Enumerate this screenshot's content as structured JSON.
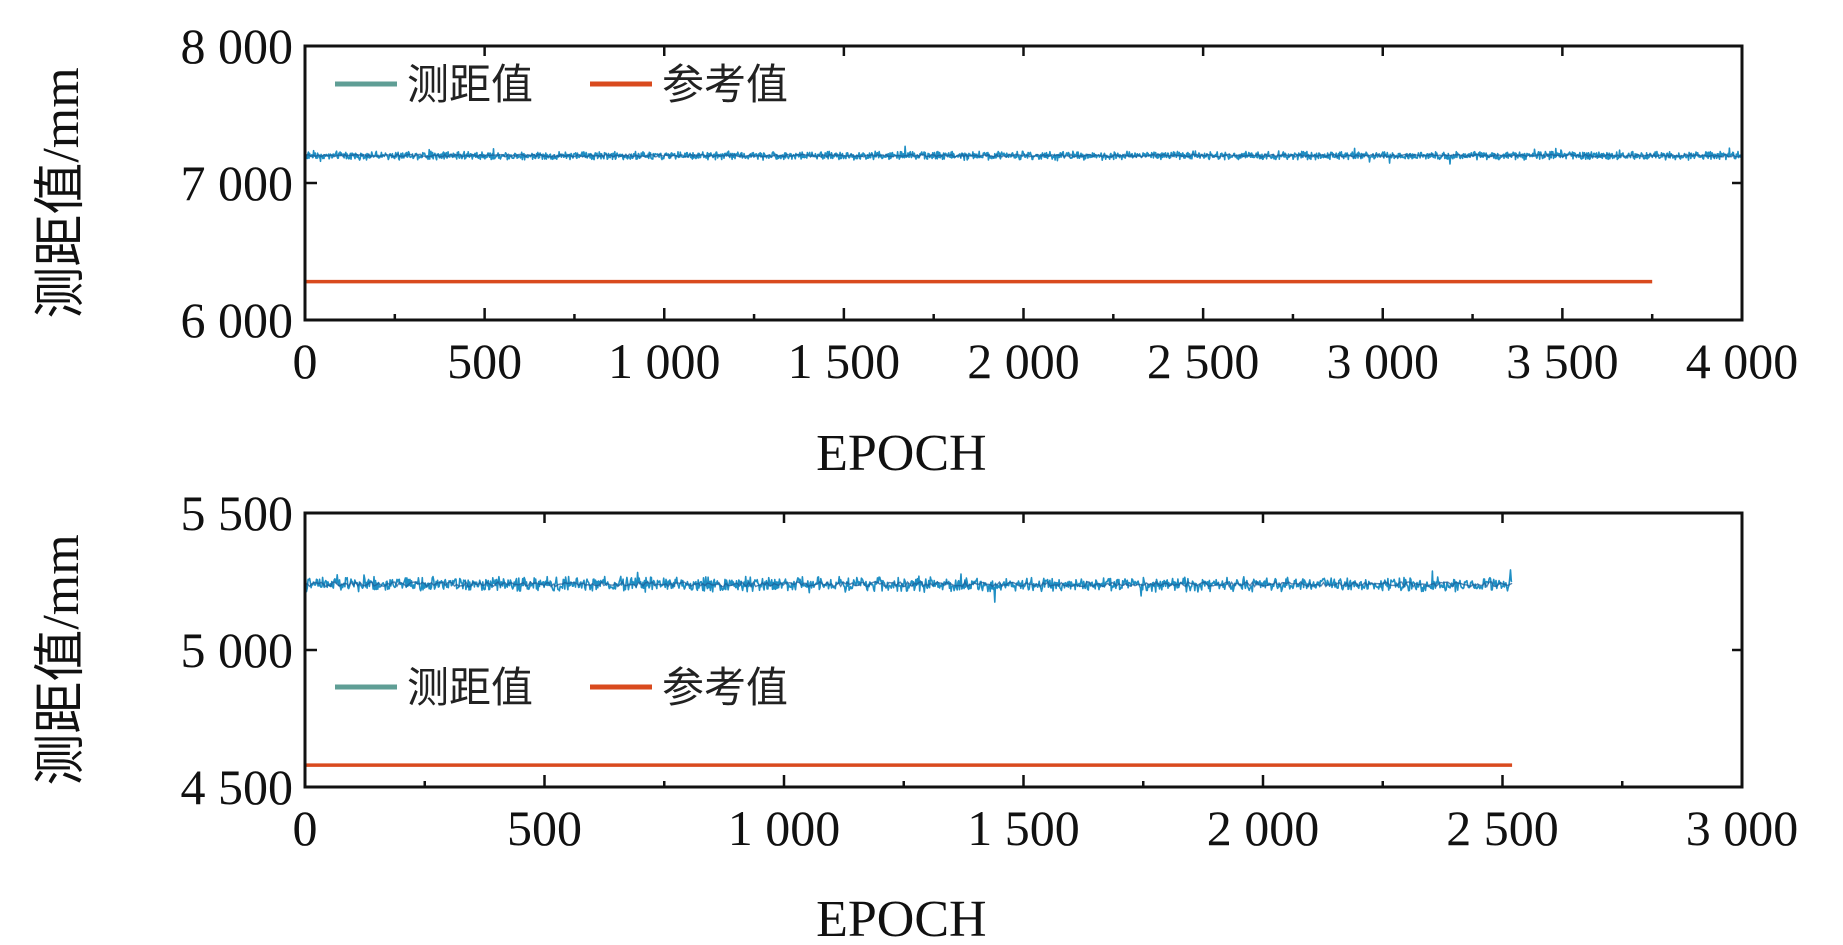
{
  "chart_data": [
    {
      "type": "line",
      "xlabel": "EPOCH",
      "ylabel": "测距值/mm",
      "xlim": [
        0,
        4000
      ],
      "ylim": [
        6000,
        8000
      ],
      "x_ticks": [
        0,
        500,
        1000,
        1500,
        2000,
        2500,
        3000,
        3500,
        4000
      ],
      "x_tick_labels": [
        "0",
        "500",
        "1 000",
        "1 500",
        "2 000",
        "2 500",
        "3 000",
        "3 500",
        "4 000"
      ],
      "y_ticks": [
        6000,
        7000,
        8000
      ],
      "y_tick_labels": [
        "6 000",
        "7 000",
        "8 000"
      ],
      "legend_position": "top-left",
      "grid": false,
      "series": [
        {
          "name": "测距值",
          "color": "#1f8fc4",
          "legend_color": "#5f9e95",
          "x_start": 0,
          "x_end": 4000,
          "mean": 7200,
          "noise_amplitude": 40
        },
        {
          "name": "参考值",
          "color": "#d94a1e",
          "legend_color": "#d94a1e",
          "x_start": 0,
          "x_end": 3750,
          "value": 6280
        }
      ]
    },
    {
      "type": "line",
      "xlabel": "EPOCH",
      "ylabel": "测距值/mm",
      "xlim": [
        0,
        3000
      ],
      "ylim": [
        4500,
        5500
      ],
      "x_ticks": [
        0,
        500,
        1000,
        1500,
        2000,
        2500,
        3000
      ],
      "x_tick_labels": [
        "0",
        "500",
        "1 000",
        "1 500",
        "2 000",
        "2 500",
        "3 000"
      ],
      "y_ticks": [
        4500,
        5000,
        5500
      ],
      "y_tick_labels": [
        "4 500",
        "5 000",
        "5 500"
      ],
      "legend_position": "middle-left",
      "grid": false,
      "series": [
        {
          "name": "测距值",
          "color": "#1f8fc4",
          "legend_color": "#5f9e95",
          "x_start": 0,
          "x_end": 2520,
          "mean": 5240,
          "noise_amplitude": 35
        },
        {
          "name": "参考值",
          "color": "#d94a1e",
          "legend_color": "#d94a1e",
          "x_start": 0,
          "x_end": 2520,
          "value": 4580
        }
      ]
    }
  ]
}
